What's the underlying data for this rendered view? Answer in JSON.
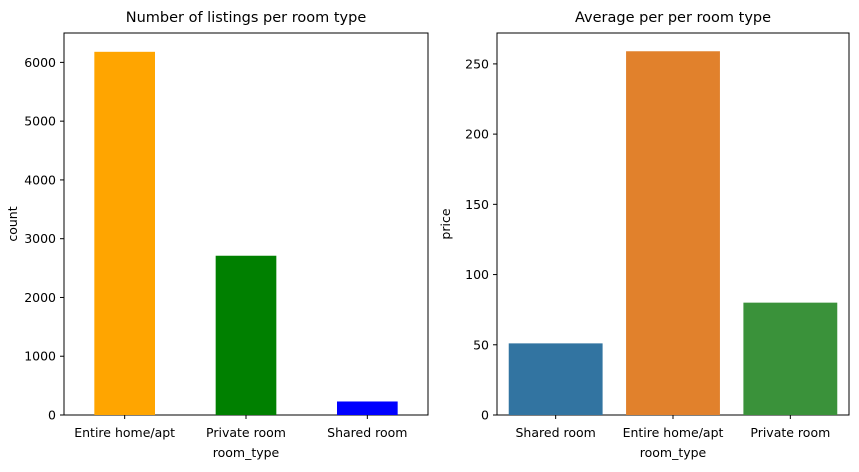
{
  "chart_data": [
    {
      "type": "bar",
      "title": "Number of listings per room type",
      "xlabel": "room_type",
      "ylabel": "count",
      "categories": [
        "Entire home/apt",
        "Private room",
        "Shared room"
      ],
      "values": [
        6180,
        2710,
        230
      ],
      "colors": [
        "#ffa500",
        "#008000",
        "#0000ff"
      ],
      "ylim": [
        0,
        6500
      ],
      "yticks": [
        0,
        1000,
        2000,
        3000,
        4000,
        5000,
        6000
      ],
      "grid": false,
      "legend": "none"
    },
    {
      "type": "bar",
      "title": "Average per per room type",
      "xlabel": "room_type",
      "ylabel": "price",
      "categories": [
        "Shared room",
        "Entire home/apt",
        "Private room"
      ],
      "values": [
        51,
        259,
        80
      ],
      "colors": [
        "#3274a1",
        "#e1812c",
        "#3a923a"
      ],
      "ylim": [
        0,
        272
      ],
      "yticks": [
        0,
        50,
        100,
        150,
        200,
        250
      ],
      "grid": false,
      "legend": "none"
    }
  ]
}
